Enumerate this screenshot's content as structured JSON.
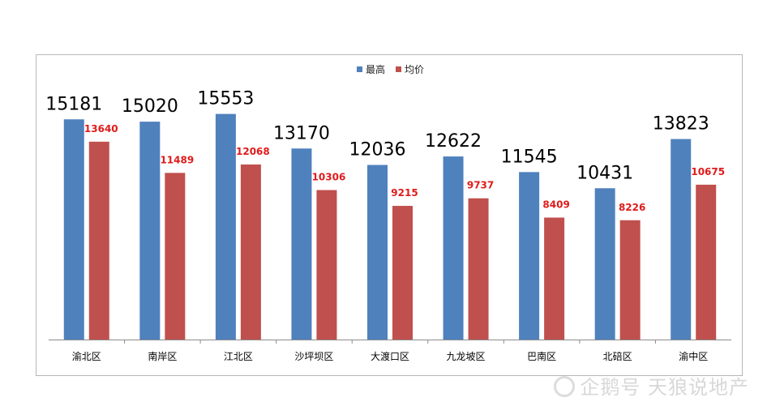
{
  "chart_data": {
    "type": "bar",
    "categories": [
      "渝北区",
      "南岸区",
      "江北区",
      "沙坪坝区",
      "大渡口区",
      "九龙坡区",
      "巴南区",
      "北碚区",
      "渝中区"
    ],
    "series": [
      {
        "name": "最高",
        "color": "#4f81bd",
        "values": [
          15181,
          15020,
          15553,
          13170,
          12036,
          12622,
          11545,
          10431,
          13823
        ]
      },
      {
        "name": "均价",
        "color": "#c0504d",
        "values": [
          13640,
          11489,
          12068,
          10306,
          9215,
          9737,
          8409,
          8226,
          10675
        ]
      }
    ],
    "ylim": [
      0,
      20000
    ],
    "grid": false,
    "legend": "top-center",
    "title": "",
    "xlabel": "",
    "ylabel": ""
  },
  "watermark": {
    "text": "企鹅号 天狼说地产",
    "icon": "penguin-logo-icon"
  }
}
